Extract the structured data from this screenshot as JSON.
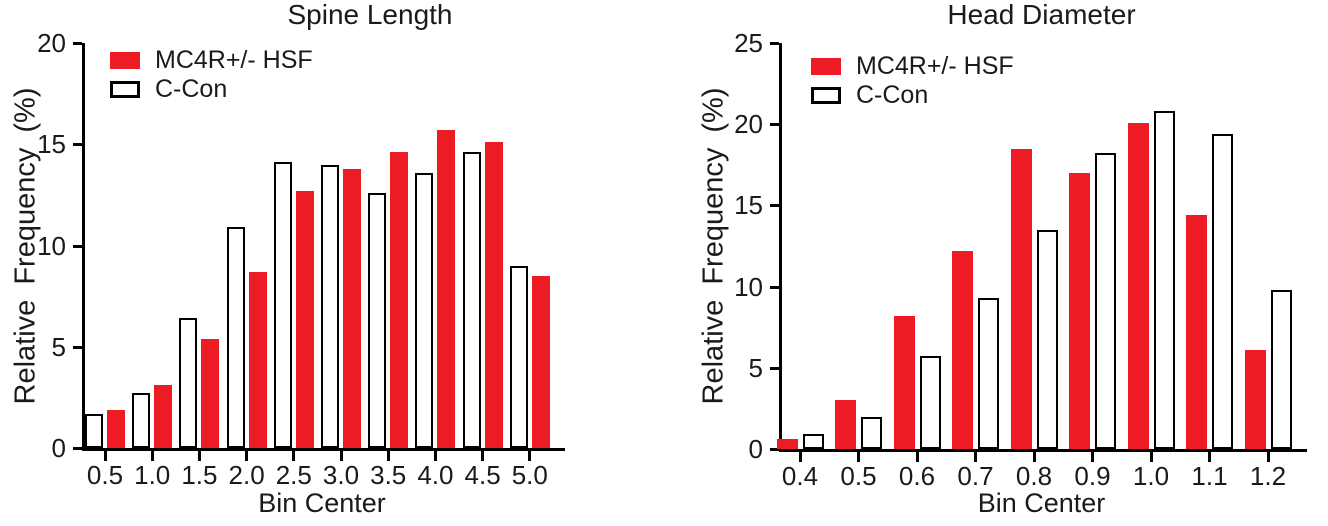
{
  "figure": {
    "background": "#ffffff",
    "text_color": "#1a1a1a"
  },
  "chart_data": [
    {
      "type": "bar",
      "title": "Spine Length",
      "xlabel": "Bin Center",
      "ylabel": "Relative Frequency (%)",
      "ylim": [
        0,
        20
      ],
      "yticks": [
        0,
        5,
        10,
        15,
        20
      ],
      "grid": false,
      "legend_position": "top-left",
      "categories": [
        "0.5",
        "1.0",
        "1.5",
        "2.0",
        "2.5",
        "3.0",
        "3.5",
        "4.0",
        "4.5",
        "5.0"
      ],
      "legend": [
        {
          "label": "MC4R+/- HSF",
          "fill": "#ED1C24",
          "outline": "#ED1C24"
        },
        {
          "label": "C-Con",
          "fill": "#ffffff",
          "outline": "#000000"
        }
      ],
      "series": [
        {
          "name": "C-Con",
          "fill": "#ffffff",
          "outline": "#000000",
          "values": [
            1.7,
            2.7,
            6.4,
            10.9,
            14.1,
            14.0,
            12.6,
            13.6,
            14.6,
            9.0
          ]
        },
        {
          "name": "MC4R+/- HSF",
          "fill": "#ED1C24",
          "outline": "#ED1C24",
          "values": [
            1.9,
            3.1,
            5.4,
            8.7,
            12.7,
            13.8,
            14.6,
            15.7,
            15.1,
            8.5
          ]
        }
      ]
    },
    {
      "type": "bar",
      "title": "Head Diameter",
      "xlabel": "Bin Center",
      "ylabel": "Relative Frequency (%)",
      "ylim": [
        0,
        25
      ],
      "yticks": [
        0,
        5,
        10,
        15,
        20,
        25
      ],
      "grid": false,
      "legend_position": "top-left",
      "categories": [
        "0.4",
        "0.5",
        "0.6",
        "0.7",
        "0.8",
        "0.9",
        "1.0",
        "1.1",
        "1.2"
      ],
      "legend": [
        {
          "label": "MC4R+/- HSF",
          "fill": "#ED1C24",
          "outline": "#ED1C24"
        },
        {
          "label": "C-Con",
          "fill": "#ffffff",
          "outline": "#000000"
        }
      ],
      "series": [
        {
          "name": "MC4R+/- HSF",
          "fill": "#ED1C24",
          "outline": "#ED1C24",
          "values": [
            0.6,
            3.0,
            8.2,
            12.2,
            18.5,
            17.0,
            20.1,
            14.4,
            6.1
          ]
        },
        {
          "name": "C-Con",
          "fill": "#ffffff",
          "outline": "#000000",
          "values": [
            0.9,
            2.0,
            5.7,
            9.3,
            13.5,
            18.2,
            20.8,
            19.4,
            9.8
          ]
        }
      ]
    }
  ]
}
